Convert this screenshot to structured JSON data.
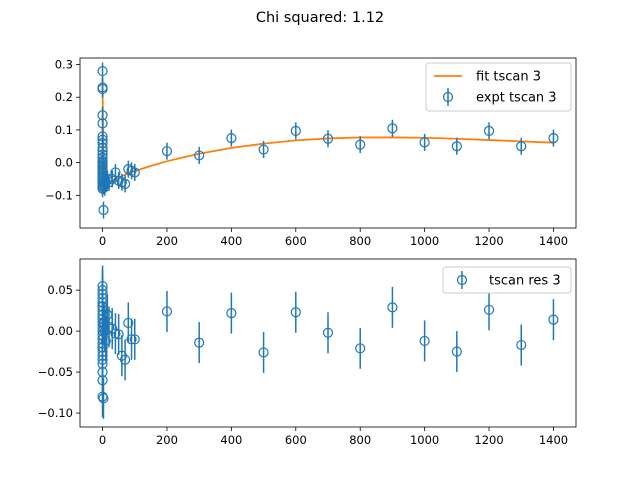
{
  "title": "Chi squared: 1.12",
  "colors": {
    "expt": "#1f77b4",
    "fit": "#ff7f0e"
  },
  "chart_data": [
    {
      "type": "scatter",
      "legend": {
        "placement": "upper-right",
        "entries": [
          "fit tscan 3",
          "expt tscan 3"
        ]
      },
      "xlim": [
        -70,
        1470
      ],
      "ylim": [
        -0.2,
        0.32
      ],
      "xticks": [
        0,
        200,
        400,
        600,
        800,
        1000,
        1200,
        1400
      ],
      "yticks": [
        -0.1,
        0.0,
        0.1,
        0.2,
        0.3
      ],
      "series": [
        {
          "name": "expt tscan 3",
          "kind": "errorbar",
          "x": [
            0,
            0,
            0,
            0,
            0,
            0,
            0,
            0,
            0,
            0,
            0,
            0,
            0,
            0,
            0,
            0,
            0,
            0,
            0,
            0,
            0,
            0,
            0,
            0,
            0,
            0,
            0,
            0,
            0,
            0,
            3,
            5,
            7,
            10,
            15,
            20,
            30,
            40,
            50,
            60,
            70,
            80,
            90,
            100,
            200,
            300,
            400,
            500,
            600,
            700,
            800,
            900,
            1000,
            1100,
            1200,
            1300,
            1400
          ],
          "y": [
            0.28,
            0.23,
            0.225,
            0.145,
            0.12,
            0.08,
            0.07,
            0.06,
            0.045,
            0.035,
            0.025,
            0.015,
            0.005,
            0.0,
            -0.005,
            -0.01,
            -0.015,
            -0.02,
            -0.025,
            -0.03,
            -0.035,
            -0.04,
            -0.045,
            -0.05,
            -0.055,
            -0.06,
            -0.065,
            -0.07,
            -0.075,
            -0.08,
            -0.145,
            -0.07,
            -0.075,
            -0.06,
            -0.05,
            -0.06,
            -0.05,
            -0.03,
            -0.055,
            -0.06,
            -0.065,
            -0.02,
            -0.025,
            -0.03,
            0.035,
            0.022,
            0.075,
            0.04,
            0.097,
            0.073,
            0.055,
            0.105,
            0.062,
            0.05,
            0.097,
            0.05,
            0.075
          ],
          "yerr": 0.026
        },
        {
          "name": "fit tscan 3",
          "kind": "line",
          "x": [
            0,
            0.5,
            1,
            2,
            3,
            5,
            8,
            12,
            18,
            25,
            35,
            50,
            70,
            100,
            150,
            200,
            250,
            300,
            400,
            500,
            600,
            700,
            800,
            900,
            1000,
            1100,
            1200,
            1300,
            1400
          ],
          "y": [
            0.26,
            0.2,
            0.14,
            0.06,
            0.0,
            -0.05,
            -0.065,
            -0.066,
            -0.062,
            -0.058,
            -0.053,
            -0.046,
            -0.037,
            -0.026,
            -0.01,
            0.004,
            0.016,
            0.027,
            0.045,
            0.058,
            0.068,
            0.074,
            0.077,
            0.077,
            0.076,
            0.073,
            0.069,
            0.065,
            0.061
          ]
        }
      ]
    },
    {
      "type": "scatter",
      "legend": {
        "placement": "upper-right",
        "entries": [
          "tscan res 3"
        ]
      },
      "xlim": [
        -70,
        1470
      ],
      "ylim": [
        -0.117,
        0.088
      ],
      "xticks": [
        0,
        200,
        400,
        600,
        800,
        1000,
        1200,
        1400
      ],
      "yticks": [
        -0.1,
        -0.05,
        0.0,
        0.05
      ],
      "series": [
        {
          "name": "tscan res 3",
          "kind": "errorbar",
          "x": [
            0,
            0,
            0,
            0,
            0,
            0,
            0,
            0,
            0,
            0,
            0,
            0,
            0,
            0,
            0,
            0,
            0,
            0,
            0,
            0,
            0,
            0,
            0,
            0,
            0,
            0,
            0,
            0,
            0,
            0,
            3,
            5,
            7,
            10,
            15,
            20,
            30,
            40,
            50,
            60,
            70,
            80,
            90,
            100,
            200,
            300,
            400,
            500,
            600,
            700,
            800,
            900,
            1000,
            1100,
            1200,
            1300,
            1400
          ],
          "y": [
            0.055,
            0.05,
            0.04,
            0.035,
            0.03,
            0.025,
            0.02,
            0.015,
            0.01,
            0.005,
            0.0,
            -0.005,
            -0.01,
            -0.015,
            -0.02,
            -0.025,
            -0.03,
            -0.035,
            -0.04,
            -0.05,
            -0.08,
            0.045,
            0.02,
            0.0,
            -0.01,
            0.03,
            0.01,
            -0.02,
            0.035,
            -0.06,
            -0.082,
            0.01,
            0.0,
            -0.012,
            0.02,
            0.005,
            0.003,
            -0.003,
            -0.004,
            -0.03,
            -0.035,
            0.01,
            -0.01,
            -0.01,
            0.024,
            -0.014,
            0.022,
            -0.026,
            0.023,
            -0.002,
            -0.021,
            0.029,
            -0.012,
            -0.025,
            0.026,
            -0.017,
            0.014
          ],
          "yerr": 0.025
        }
      ]
    }
  ]
}
